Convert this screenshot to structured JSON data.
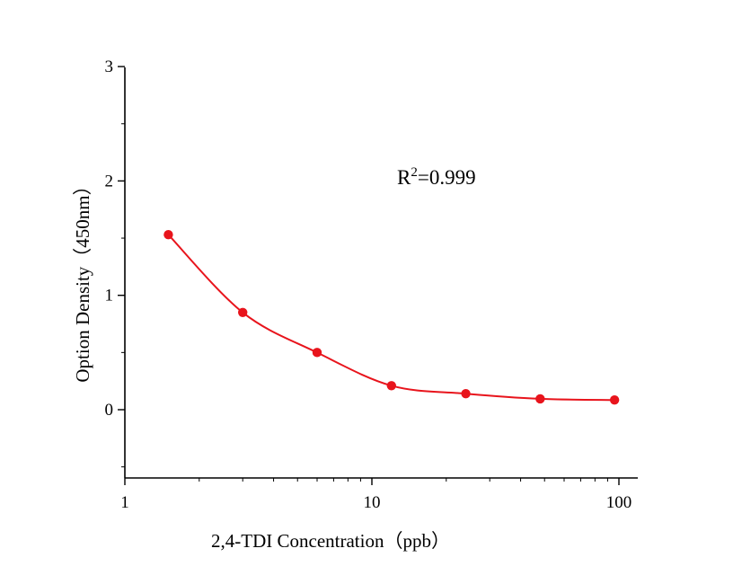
{
  "chart_data": {
    "type": "scatter",
    "title": "",
    "xlabel": "2,4-TDI Concentration（ppb）",
    "ylabel": "Option Density（450nm）",
    "x_scale": "log",
    "xlim": [
      1,
      110
    ],
    "ylim": [
      -0.6,
      3
    ],
    "x_ticks": [
      1,
      10,
      100
    ],
    "x_tick_labels": [
      "1",
      "10",
      "100"
    ],
    "y_ticks": [
      0,
      1,
      2,
      3
    ],
    "y_tick_labels": [
      "0",
      "1",
      "2",
      "3"
    ],
    "grid": false,
    "legend": "none",
    "annotation": {
      "prefix": "R",
      "superscript": "2",
      "text": "=0.999"
    },
    "series": [
      {
        "color": "#e8141c",
        "x": [
          1.5,
          3,
          6,
          12,
          24,
          48,
          96
        ],
        "y": [
          1.53,
          0.85,
          0.5,
          0.21,
          0.14,
          0.095,
          0.085
        ],
        "fit": "smooth curve"
      }
    ]
  }
}
